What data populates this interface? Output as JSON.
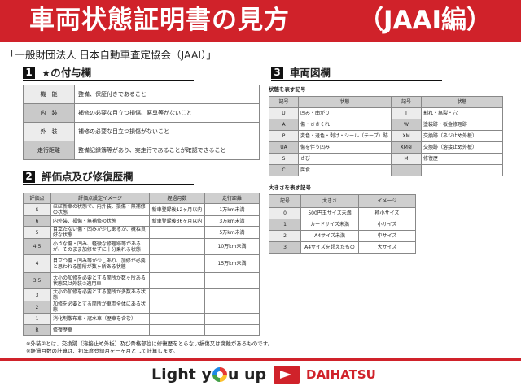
{
  "header": {
    "title": "車両状態証明書の見方",
    "suffix": "（JAAI編）"
  },
  "organization": "「一般財団法人 日本自動車査定協会（JAAI）」",
  "section1": {
    "num": "1",
    "title": "★の付与欄",
    "rows": [
      {
        "k": "機　能",
        "v": "整備、保証付きであること"
      },
      {
        "k": "内　装",
        "v": "補修の必要な目立つ損傷、悪臭等がないこと"
      },
      {
        "k": "外　装",
        "v": "補修の必要な目立つ損傷がないこと"
      },
      {
        "k": "走行距離",
        "v": "整備記録簿等があり、実走行であることが確認できること"
      }
    ]
  },
  "section2": {
    "num": "2",
    "title": "評価点及び修復歴欄",
    "headers": [
      "評価点",
      "評価点設定イメージ",
      "経過月数",
      "走行距離"
    ],
    "rows": [
      [
        "S",
        "ほぼ新車の状態で、内外装、損傷・無補修の状態",
        "新車登録後12ヶ月以内",
        "1万km未満"
      ],
      [
        "6",
        "内外装、損傷・無補修の状態",
        "新車登録後36ヶ月以内",
        "3万km未満"
      ],
      [
        "5",
        "目立たない傷・凹みが少しあるが、概ね良好な状態",
        "",
        "5万km未満"
      ],
      [
        "4.5",
        "小さな傷・凹み、軽微な修理跡等があるが、そのまま加修せずに十分乗れる状態",
        "",
        "10万km未満"
      ],
      [
        "4",
        "目立つ傷・凹み等が少しあり、加修が必要と思われる箇所が数ヶ所ある状態",
        "",
        "15万km未満"
      ],
      [
        "3.5",
        "大小の加修を必要とする箇所が数ヶ所ある状態又は外装②適用車",
        "",
        ""
      ],
      [
        "3",
        "大小の加修を必要とする箇所が多数ある状態",
        "",
        ""
      ],
      [
        "2",
        "加修を必要とする箇所が車両全体にある状態",
        "",
        ""
      ],
      [
        "1",
        "消化剤散布車・冠水車（歴車を含む）",
        "",
        ""
      ],
      [
        "R",
        "修復歴車",
        "",
        ""
      ]
    ]
  },
  "notes": [
    "※外装②とは、交換跡（溶接止め外板）及び骨格部位に修復歴をとらない損傷又は腐蝕があるものです。",
    "※経過月数の計算は、初年度登録月を一ヶ月として計算します。"
  ],
  "section3": {
    "num": "3",
    "title": "車両図欄",
    "condition": {
      "subtitle": "状態を表す記号",
      "headers": [
        "記号",
        "状態",
        "記号",
        "状態"
      ],
      "rows": [
        [
          "U",
          "凹み・曲がり",
          "T",
          "割れ・亀裂・穴"
        ],
        [
          "A",
          "傷・ささくれ",
          "W",
          "塗装跡・板金修理跡"
        ],
        [
          "P",
          "変色・退色・剥げ・シール（テープ）跡",
          "XM",
          "交換跡（ネジ止め外板）"
        ],
        [
          "UA",
          "傷を伴う凹み",
          "XM②",
          "交換跡（溶接止め外板）"
        ],
        [
          "S",
          "さび",
          "M",
          "修復歴"
        ],
        [
          "C",
          "腐食",
          "",
          ""
        ]
      ]
    },
    "size": {
      "subtitle": "大きさを表す記号",
      "headers": [
        "記号",
        "大きさ",
        "イメージ"
      ],
      "rows": [
        [
          "0",
          "500円玉サイズ未満",
          "極小サイズ"
        ],
        [
          "1",
          "カードサイズ未満",
          "小サイズ"
        ],
        [
          "2",
          "A4サイズ未満",
          "中サイズ"
        ],
        [
          "3",
          "A4サイズを超えたもの",
          "大サイズ"
        ]
      ]
    }
  },
  "footer": {
    "slogan_pre": "Light y",
    "slogan_post": "u up",
    "brand": "DAIHATSU"
  },
  "colors": {
    "brand_red": "#d0222a"
  }
}
